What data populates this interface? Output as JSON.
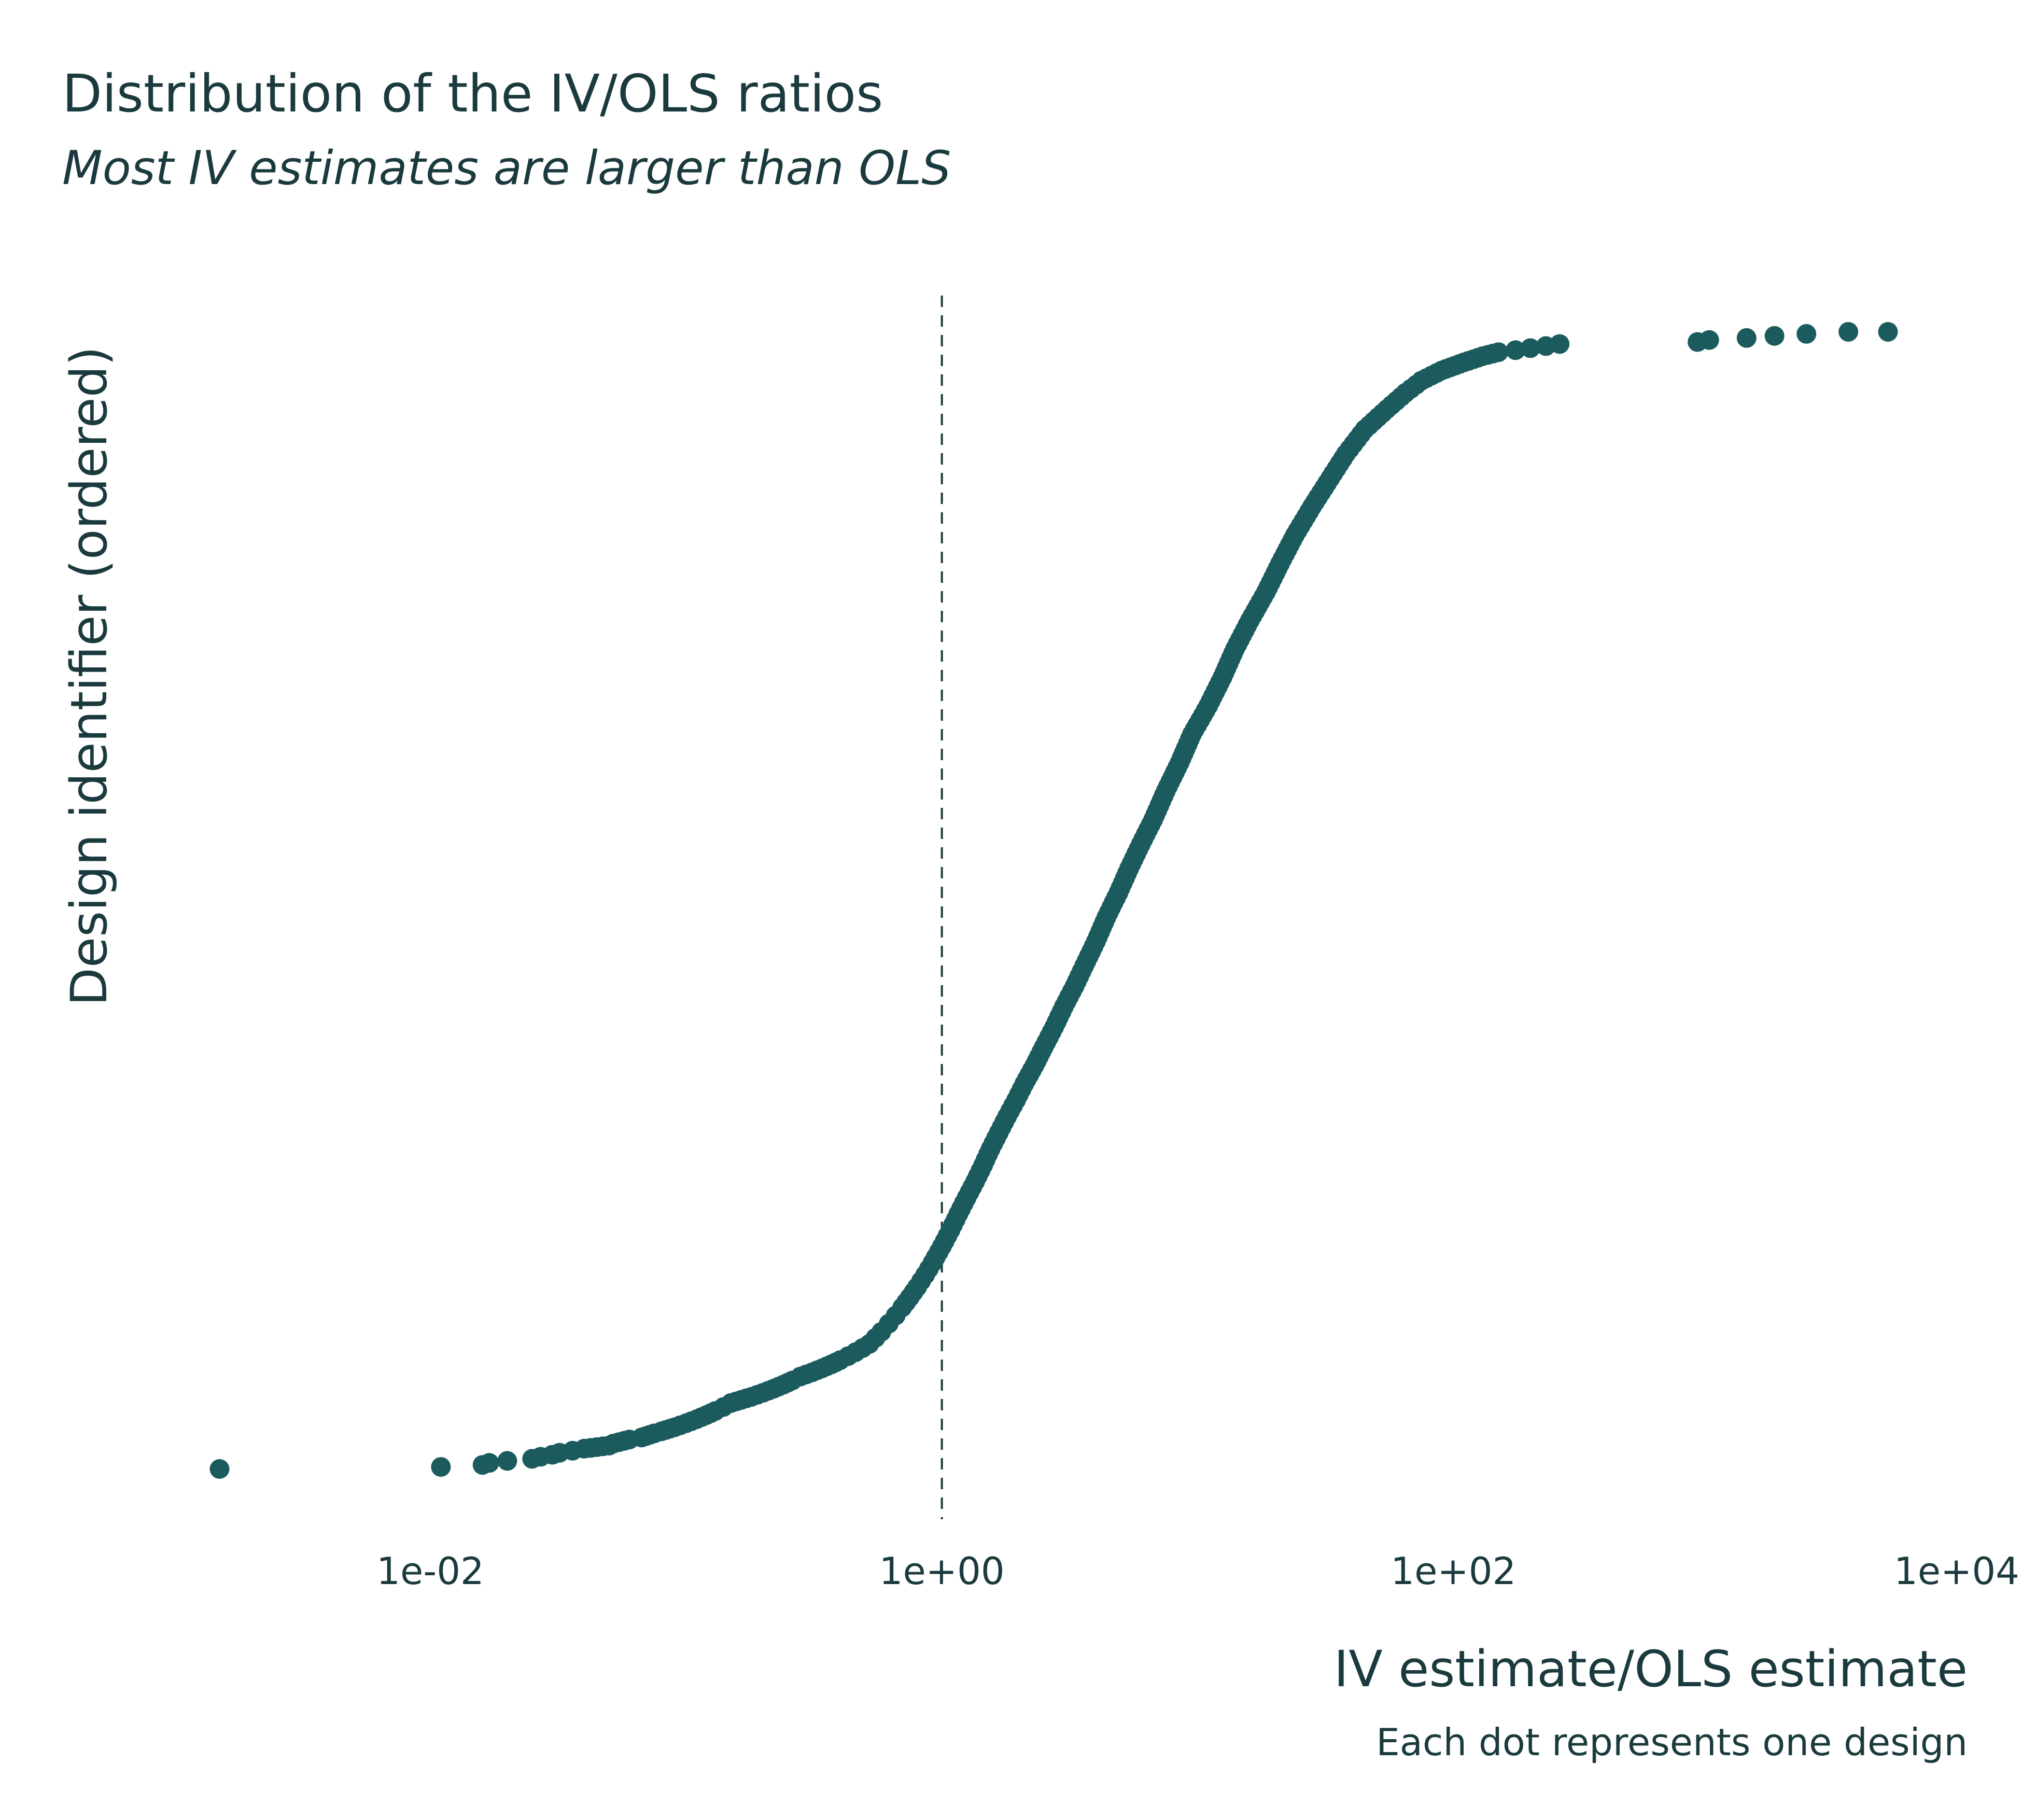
{
  "chart_data": {
    "type": "scatter",
    "title": "Distribution of the IV/OLS ratios",
    "subtitle": "Most IV estimates are larger than OLS",
    "xlabel": "IV estimate/OLS estimate",
    "ylabel": "Design identifier (ordered)",
    "caption": "Each dot represents one design",
    "x_scale": "log10",
    "xlim": [
      0.0003,
      10000
    ],
    "x_ticks": [
      0.01,
      1,
      100,
      10000
    ],
    "x_tick_labels": [
      "1e-02",
      "1e+00",
      "1e+02",
      "1e+04"
    ],
    "reference_line": {
      "x": 1,
      "style": "dashed"
    },
    "grid": false,
    "legend": "none",
    "point_color": "#1b5b5e",
    "n_designs": 560,
    "x": [
      0.0015,
      0.011,
      0.016,
      0.017,
      0.02,
      0.025,
      0.027,
      0.03,
      0.032,
      0.036,
      0.04,
      0.05,
      0.052,
      0.06,
      0.067,
      0.075,
      0.08,
      0.09,
      0.1,
      0.11,
      0.12,
      0.13,
      0.14,
      0.15,
      0.18,
      0.2,
      0.22,
      0.24,
      0.26,
      0.28,
      0.31,
      0.34,
      0.37,
      0.4,
      0.43,
      0.46,
      0.49,
      0.52,
      0.55,
      0.58,
      0.62,
      0.66,
      0.7,
      0.75,
      0.8,
      0.86,
      0.92,
      1.0,
      1.08,
      1.16,
      1.25,
      1.35,
      1.45,
      1.55,
      1.67,
      1.8,
      1.95,
      2.1,
      2.3,
      2.5,
      2.75,
      3.0,
      3.3,
      3.6,
      4.0,
      4.4,
      4.9,
      5.4,
      6.0,
      6.7,
      7.5,
      8.5,
      9.5,
      11,
      12.5,
      14,
      16,
      18.5,
      21,
      24,
      28,
      33,
      38,
      45,
      55,
      65,
      75,
      90,
      110,
      130,
      150,
      175,
      200,
      230,
      260,
      900,
      1000,
      1400,
      1800,
      2400,
      3500,
      5000
    ],
    "y_rank": [
      0.5,
      1.5,
      2.5,
      3.5,
      4.5,
      5.5,
      6.5,
      7.5,
      8.5,
      9.5,
      10.5,
      12,
      13,
      15,
      16,
      18,
      19,
      21,
      23,
      25,
      27,
      29,
      31,
      33,
      36,
      38,
      40,
      42,
      44,
      46,
      48,
      50,
      52,
      54,
      56,
      58,
      60,
      62,
      65,
      68,
      72,
      76,
      80,
      85,
      90,
      96,
      102,
      110,
      118,
      126,
      134,
      142,
      150,
      158,
      166,
      174,
      182,
      190,
      199,
      208,
      218,
      228,
      238,
      248,
      260,
      272,
      284,
      296,
      308,
      320,
      334,
      348,
      362,
      376,
      390,
      404,
      418,
      432,
      446,
      460,
      474,
      488,
      500,
      512,
      522,
      530,
      536,
      541,
      545,
      548,
      550,
      551,
      552,
      553,
      554,
      555,
      556,
      557,
      558,
      559,
      560,
      560
    ]
  }
}
